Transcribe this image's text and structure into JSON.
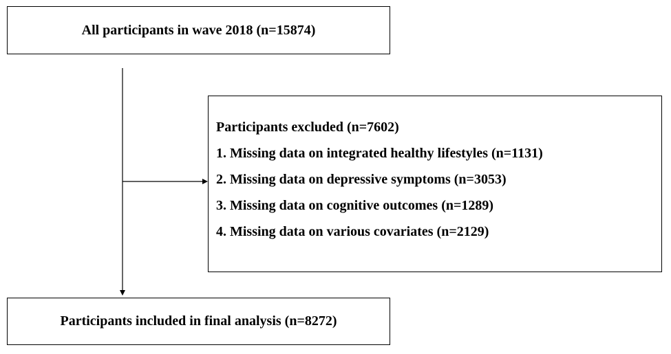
{
  "nodes": {
    "top": "All participants in wave 2018 (n=15874)",
    "excluded": {
      "heading": "Participants excluded (n=7602)",
      "items": [
        "1. Missing data on integrated healthy lifestyles (n=1131)",
        "2. Missing data on depressive symptoms (n=3053)",
        "3. Missing data on cognitive outcomes (n=1289)",
        "4. Missing data on various covariates (n=2129)"
      ]
    },
    "bottom": "Participants included in final analysis (n=8272)"
  },
  "colors": {
    "line": "#000000",
    "background": "#ffffff"
  }
}
